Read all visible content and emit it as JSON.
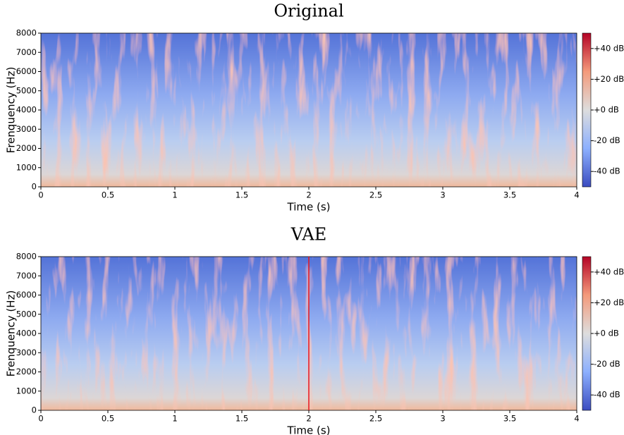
{
  "chart_data": [
    {
      "type": "spectrogram",
      "title": "Original",
      "xlabel": "Time (s)",
      "ylabel": "Frenquency (Hz)",
      "xlim": [
        0,
        4
      ],
      "xticks": [
        0,
        0.5,
        1,
        1.5,
        2,
        2.5,
        3,
        3.5,
        4
      ],
      "ylim": [
        0,
        8000
      ],
      "yticks": [
        0,
        1000,
        2000,
        3000,
        4000,
        5000,
        6000,
        7000,
        8000
      ],
      "colormap": "coolwarm",
      "clim": [
        -50,
        50
      ],
      "cticks": [
        {
          "value": 40,
          "label": "+40 dB"
        },
        {
          "value": 20,
          "label": "+20 dB"
        },
        {
          "value": 0,
          "label": "+0 dB"
        },
        {
          "value": -20,
          "label": "-20 dB"
        },
        {
          "value": -40,
          "label": "-40 dB"
        }
      ]
    },
    {
      "type": "spectrogram",
      "title": "VAE",
      "xlabel": "Time (s)",
      "ylabel": "Frenquency (Hz)",
      "xlim": [
        0,
        4
      ],
      "xticks": [
        0,
        0.5,
        1,
        1.5,
        2,
        2.5,
        3,
        3.5,
        4
      ],
      "ylim": [
        0,
        8000
      ],
      "yticks": [
        0,
        1000,
        2000,
        3000,
        4000,
        5000,
        6000,
        7000,
        8000
      ],
      "colormap": "coolwarm",
      "clim": [
        -50,
        50
      ],
      "cticks": [
        {
          "value": 40,
          "label": "+40 dB"
        },
        {
          "value": 20,
          "label": "+20 dB"
        },
        {
          "value": 0,
          "label": "+0 dB"
        },
        {
          "value": -20,
          "label": "-20 dB"
        },
        {
          "value": -40,
          "label": "-40 dB"
        }
      ],
      "vline": {
        "x": 2,
        "color": "#e8141c"
      }
    }
  ]
}
